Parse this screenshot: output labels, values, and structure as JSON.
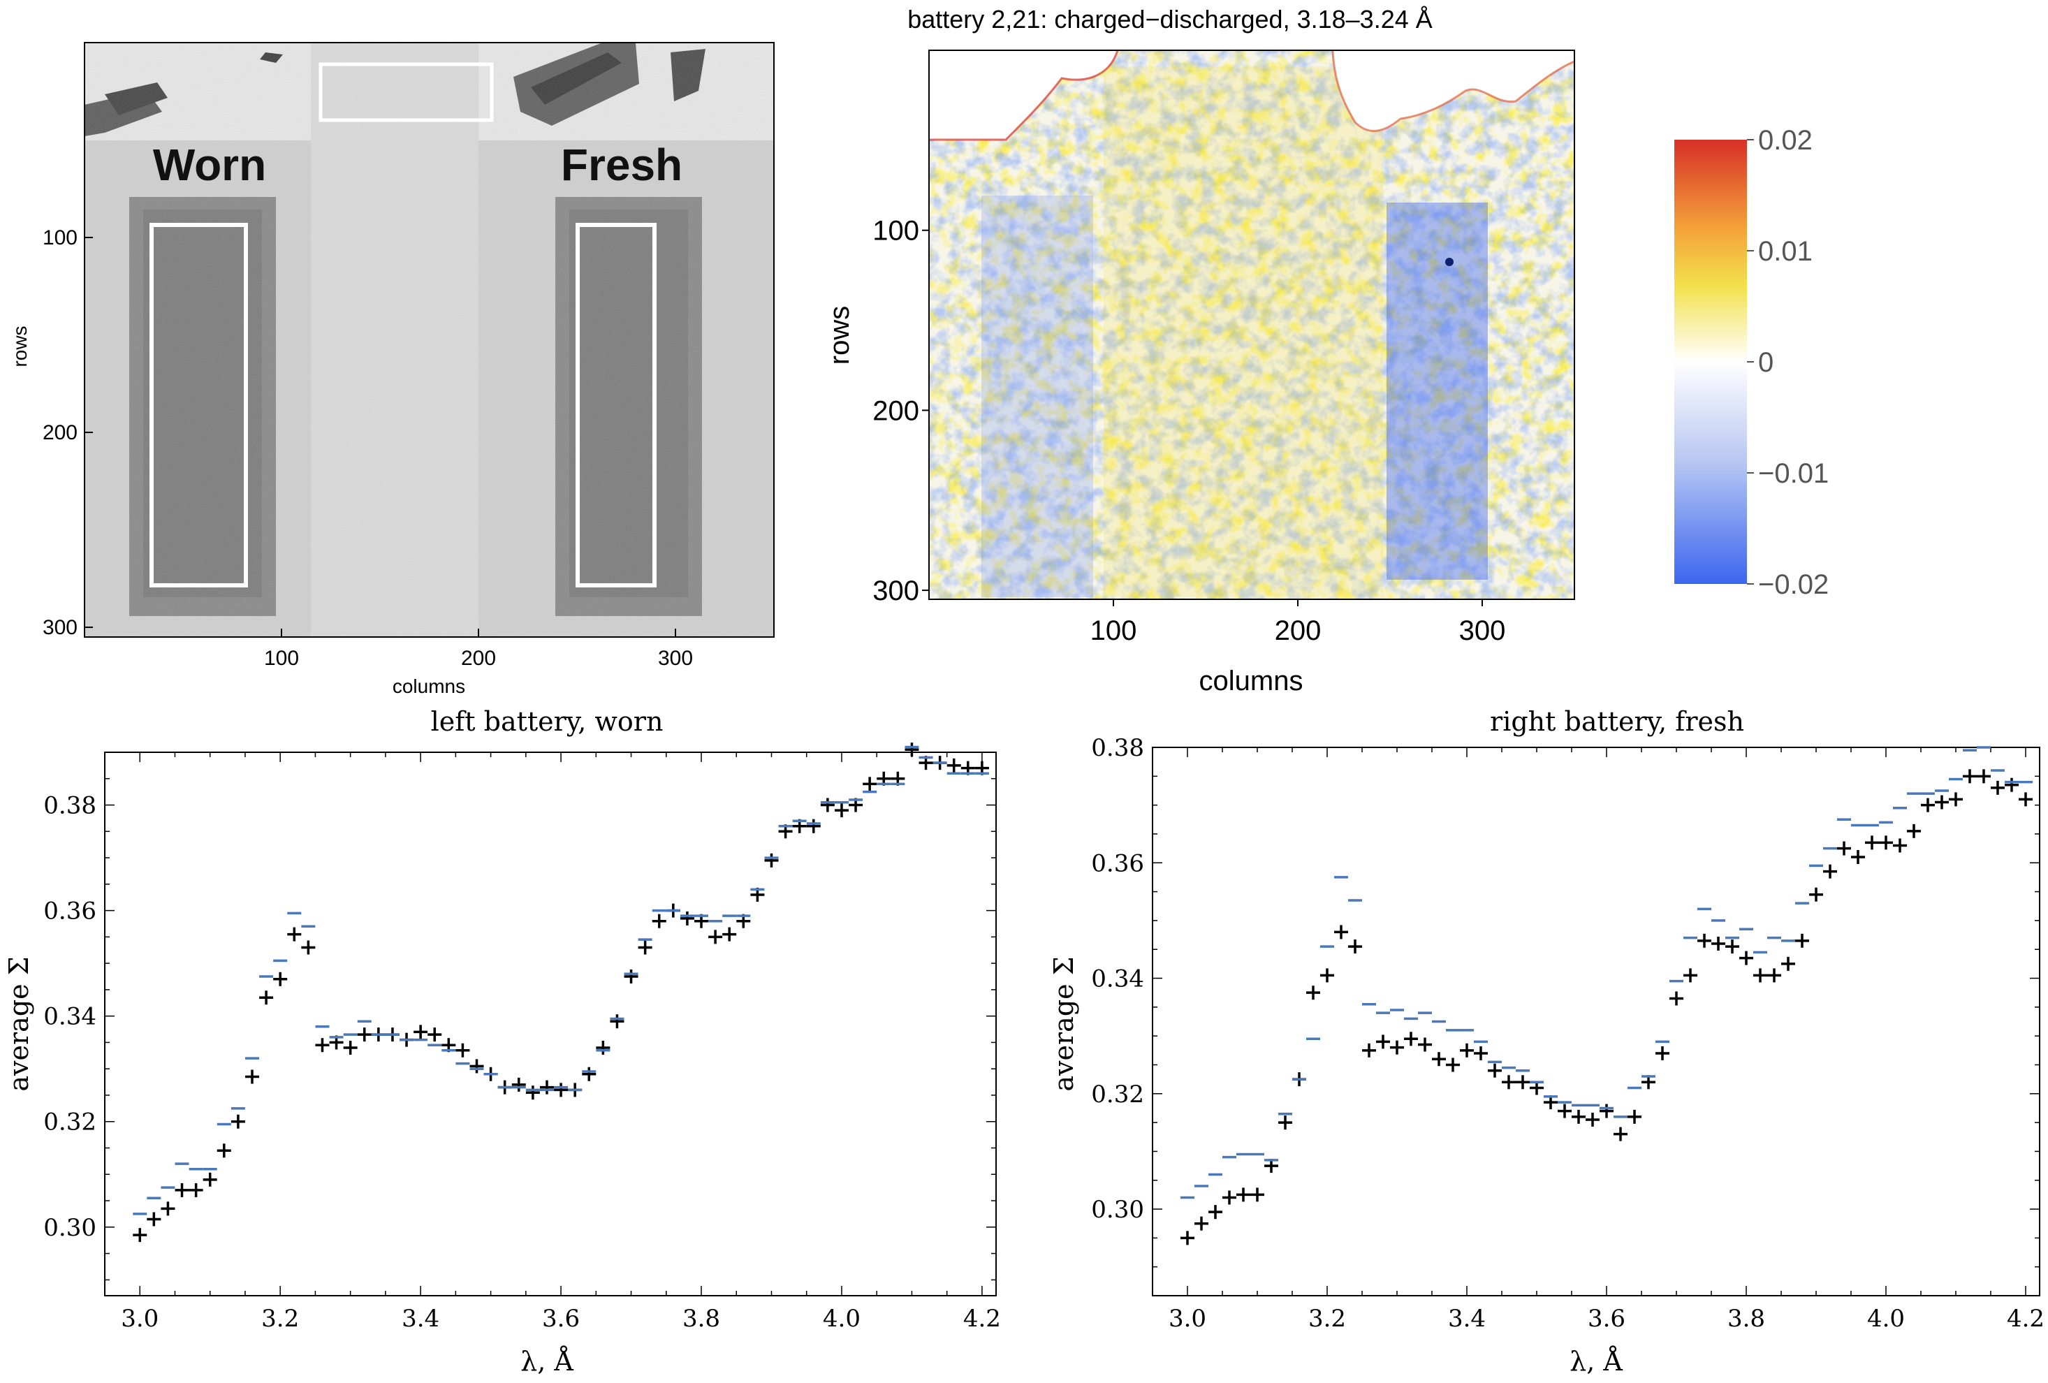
{
  "chart_data": [
    {
      "type": "image",
      "panel": "top-left",
      "title": "",
      "xlabel": "columns",
      "ylabel": "rows",
      "xticks": [
        "100",
        "200",
        "300"
      ],
      "yticks": [
        "100",
        "200",
        "300"
      ],
      "xlim": [
        0,
        350
      ],
      "ylim": [
        305,
        0
      ],
      "labels": {
        "left": "Worn",
        "right": "Fresh"
      },
      "colors": {
        "bg": "#d2d2d2",
        "cell": "#858585",
        "cell_inner": "#777777",
        "roi": "#ffffff",
        "strip": "#dddddd"
      }
    },
    {
      "type": "heatmap",
      "panel": "top-right",
      "title": "battery 2,21: charged−discharged, 3.18–3.24 Å",
      "xlabel": "columns",
      "ylabel": "rows",
      "xticks": [
        "100",
        "200",
        "300"
      ],
      "yticks": [
        "100",
        "200",
        "300"
      ],
      "xlim": [
        0,
        350
      ],
      "ylim": [
        305,
        0
      ],
      "colorbar": {
        "ticks": [
          "0.02",
          "0.01",
          "0",
          "−0.01",
          "−0.02"
        ],
        "range": [
          -0.02,
          0.02
        ],
        "stops": [
          "#d73027",
          "#f4a23a",
          "#f2e14c",
          "#ffffff",
          "#b9c8f2",
          "#3d66f0"
        ]
      }
    },
    {
      "type": "scatter",
      "panel": "bottom-left",
      "title": "left battery, worn",
      "xlabel": "λ, Å",
      "ylabel": "average Σ",
      "xlim": [
        2.95,
        4.22
      ],
      "ylim": [
        0.287,
        0.39
      ],
      "xticks": [
        "3.0",
        "3.2",
        "3.4",
        "3.6",
        "3.8",
        "4.0",
        "4.2"
      ],
      "yticks": [
        "0.30",
        "0.32",
        "0.34",
        "0.36",
        "0.38"
      ],
      "x": [
        3.0,
        3.02,
        3.04,
        3.06,
        3.08,
        3.1,
        3.12,
        3.14,
        3.16,
        3.18,
        3.2,
        3.22,
        3.24,
        3.26,
        3.28,
        3.3,
        3.32,
        3.34,
        3.36,
        3.38,
        3.4,
        3.42,
        3.44,
        3.46,
        3.48,
        3.5,
        3.52,
        3.54,
        3.56,
        3.58,
        3.6,
        3.62,
        3.64,
        3.66,
        3.68,
        3.7,
        3.72,
        3.74,
        3.76,
        3.78,
        3.8,
        3.82,
        3.84,
        3.86,
        3.88,
        3.9,
        3.92,
        3.94,
        3.96,
        3.98,
        4.0,
        4.02,
        4.04,
        4.06,
        4.08,
        4.1,
        4.12,
        4.14,
        4.16,
        4.18,
        4.2
      ],
      "series": [
        {
          "name": "charged",
          "marker": "plus",
          "color": "#000000",
          "values": [
            0.2985,
            0.3015,
            0.3035,
            0.307,
            0.307,
            0.309,
            0.3145,
            0.32,
            0.3285,
            0.3435,
            0.347,
            0.3555,
            0.353,
            0.3345,
            0.335,
            0.334,
            0.3365,
            0.3365,
            0.3365,
            0.3355,
            0.337,
            0.3365,
            0.3345,
            0.3335,
            0.3305,
            0.329,
            0.3265,
            0.327,
            0.3255,
            0.3265,
            0.326,
            0.326,
            0.329,
            0.334,
            0.339,
            0.3475,
            0.353,
            0.358,
            0.36,
            0.3585,
            0.358,
            0.355,
            0.3555,
            0.358,
            0.363,
            0.3695,
            0.375,
            0.376,
            0.376,
            0.38,
            0.379,
            0.38,
            0.384,
            0.385,
            0.385,
            0.3905,
            0.388,
            0.388,
            0.3875,
            0.387,
            0.387
          ]
        },
        {
          "name": "discharged",
          "marker": "dash",
          "color": "#4a78b8",
          "values": [
            0.3025,
            0.3055,
            0.3075,
            0.312,
            0.311,
            0.311,
            0.3195,
            0.3225,
            0.332,
            0.3475,
            0.3505,
            0.3595,
            0.357,
            0.338,
            0.336,
            0.3365,
            0.339,
            0.3365,
            0.3365,
            0.3355,
            0.3355,
            0.3345,
            0.3335,
            0.331,
            0.33,
            0.329,
            0.3265,
            0.3265,
            0.326,
            0.326,
            0.3265,
            0.326,
            0.3295,
            0.3335,
            0.3395,
            0.348,
            0.3545,
            0.36,
            0.36,
            0.359,
            0.359,
            0.358,
            0.359,
            0.359,
            0.364,
            0.37,
            0.376,
            0.377,
            0.3765,
            0.3805,
            0.3805,
            0.381,
            0.3825,
            0.384,
            0.384,
            0.391,
            0.389,
            0.388,
            0.386,
            0.386,
            0.386
          ]
        }
      ]
    },
    {
      "type": "scatter",
      "panel": "bottom-right",
      "title": "right battery, fresh",
      "xlabel": "λ, Å",
      "ylabel": "average Σ",
      "xlim": [
        2.95,
        4.22
      ],
      "ylim": [
        0.285,
        0.38
      ],
      "xticks": [
        "3.0",
        "3.2",
        "3.4",
        "3.6",
        "3.8",
        "4.0",
        "4.2"
      ],
      "yticks": [
        "0.30",
        "0.32",
        "0.34",
        "0.36",
        "0.38"
      ],
      "x": [
        3.0,
        3.02,
        3.04,
        3.06,
        3.08,
        3.1,
        3.12,
        3.14,
        3.16,
        3.18,
        3.2,
        3.22,
        3.24,
        3.26,
        3.28,
        3.3,
        3.32,
        3.34,
        3.36,
        3.38,
        3.4,
        3.42,
        3.44,
        3.46,
        3.48,
        3.5,
        3.52,
        3.54,
        3.56,
        3.58,
        3.6,
        3.62,
        3.64,
        3.66,
        3.68,
        3.7,
        3.72,
        3.74,
        3.76,
        3.78,
        3.8,
        3.82,
        3.84,
        3.86,
        3.88,
        3.9,
        3.92,
        3.94,
        3.96,
        3.98,
        4.0,
        4.02,
        4.04,
        4.06,
        4.08,
        4.1,
        4.12,
        4.14,
        4.16,
        4.18,
        4.2
      ],
      "series": [
        {
          "name": "charged",
          "marker": "plus",
          "color": "#000000",
          "values": [
            0.295,
            0.2975,
            0.2995,
            0.302,
            0.3025,
            0.3025,
            0.3075,
            0.315,
            0.3225,
            0.3375,
            0.3405,
            0.348,
            0.3455,
            0.3275,
            0.329,
            0.328,
            0.3295,
            0.3285,
            0.326,
            0.325,
            0.3275,
            0.327,
            0.324,
            0.322,
            0.322,
            0.321,
            0.3185,
            0.317,
            0.316,
            0.3155,
            0.317,
            0.313,
            0.316,
            0.322,
            0.327,
            0.3365,
            0.3405,
            0.3465,
            0.346,
            0.3455,
            0.3435,
            0.3405,
            0.3405,
            0.3425,
            0.3465,
            0.3545,
            0.3585,
            0.3625,
            0.361,
            0.3635,
            0.3635,
            0.363,
            0.3655,
            0.37,
            0.3705,
            0.371,
            0.375,
            0.375,
            0.373,
            0.3735,
            0.371
          ]
        },
        {
          "name": "discharged",
          "marker": "dash",
          "color": "#4a78b8",
          "values": [
            0.302,
            0.304,
            0.306,
            0.309,
            0.3095,
            0.3095,
            0.3085,
            0.3165,
            0.3225,
            0.3295,
            0.3455,
            0.3575,
            0.3535,
            0.3355,
            0.334,
            0.3345,
            0.333,
            0.334,
            0.3325,
            0.331,
            0.331,
            0.329,
            0.3255,
            0.3245,
            0.324,
            0.322,
            0.3195,
            0.3185,
            0.318,
            0.318,
            0.3175,
            0.316,
            0.321,
            0.323,
            0.329,
            0.3395,
            0.347,
            0.352,
            0.35,
            0.347,
            0.3485,
            0.3445,
            0.347,
            0.3465,
            0.353,
            0.3595,
            0.3625,
            0.3675,
            0.3665,
            0.3665,
            0.367,
            0.3695,
            0.372,
            0.372,
            0.3725,
            0.3745,
            0.3795,
            0.38,
            0.376,
            0.374,
            0.374
          ]
        }
      ]
    }
  ]
}
